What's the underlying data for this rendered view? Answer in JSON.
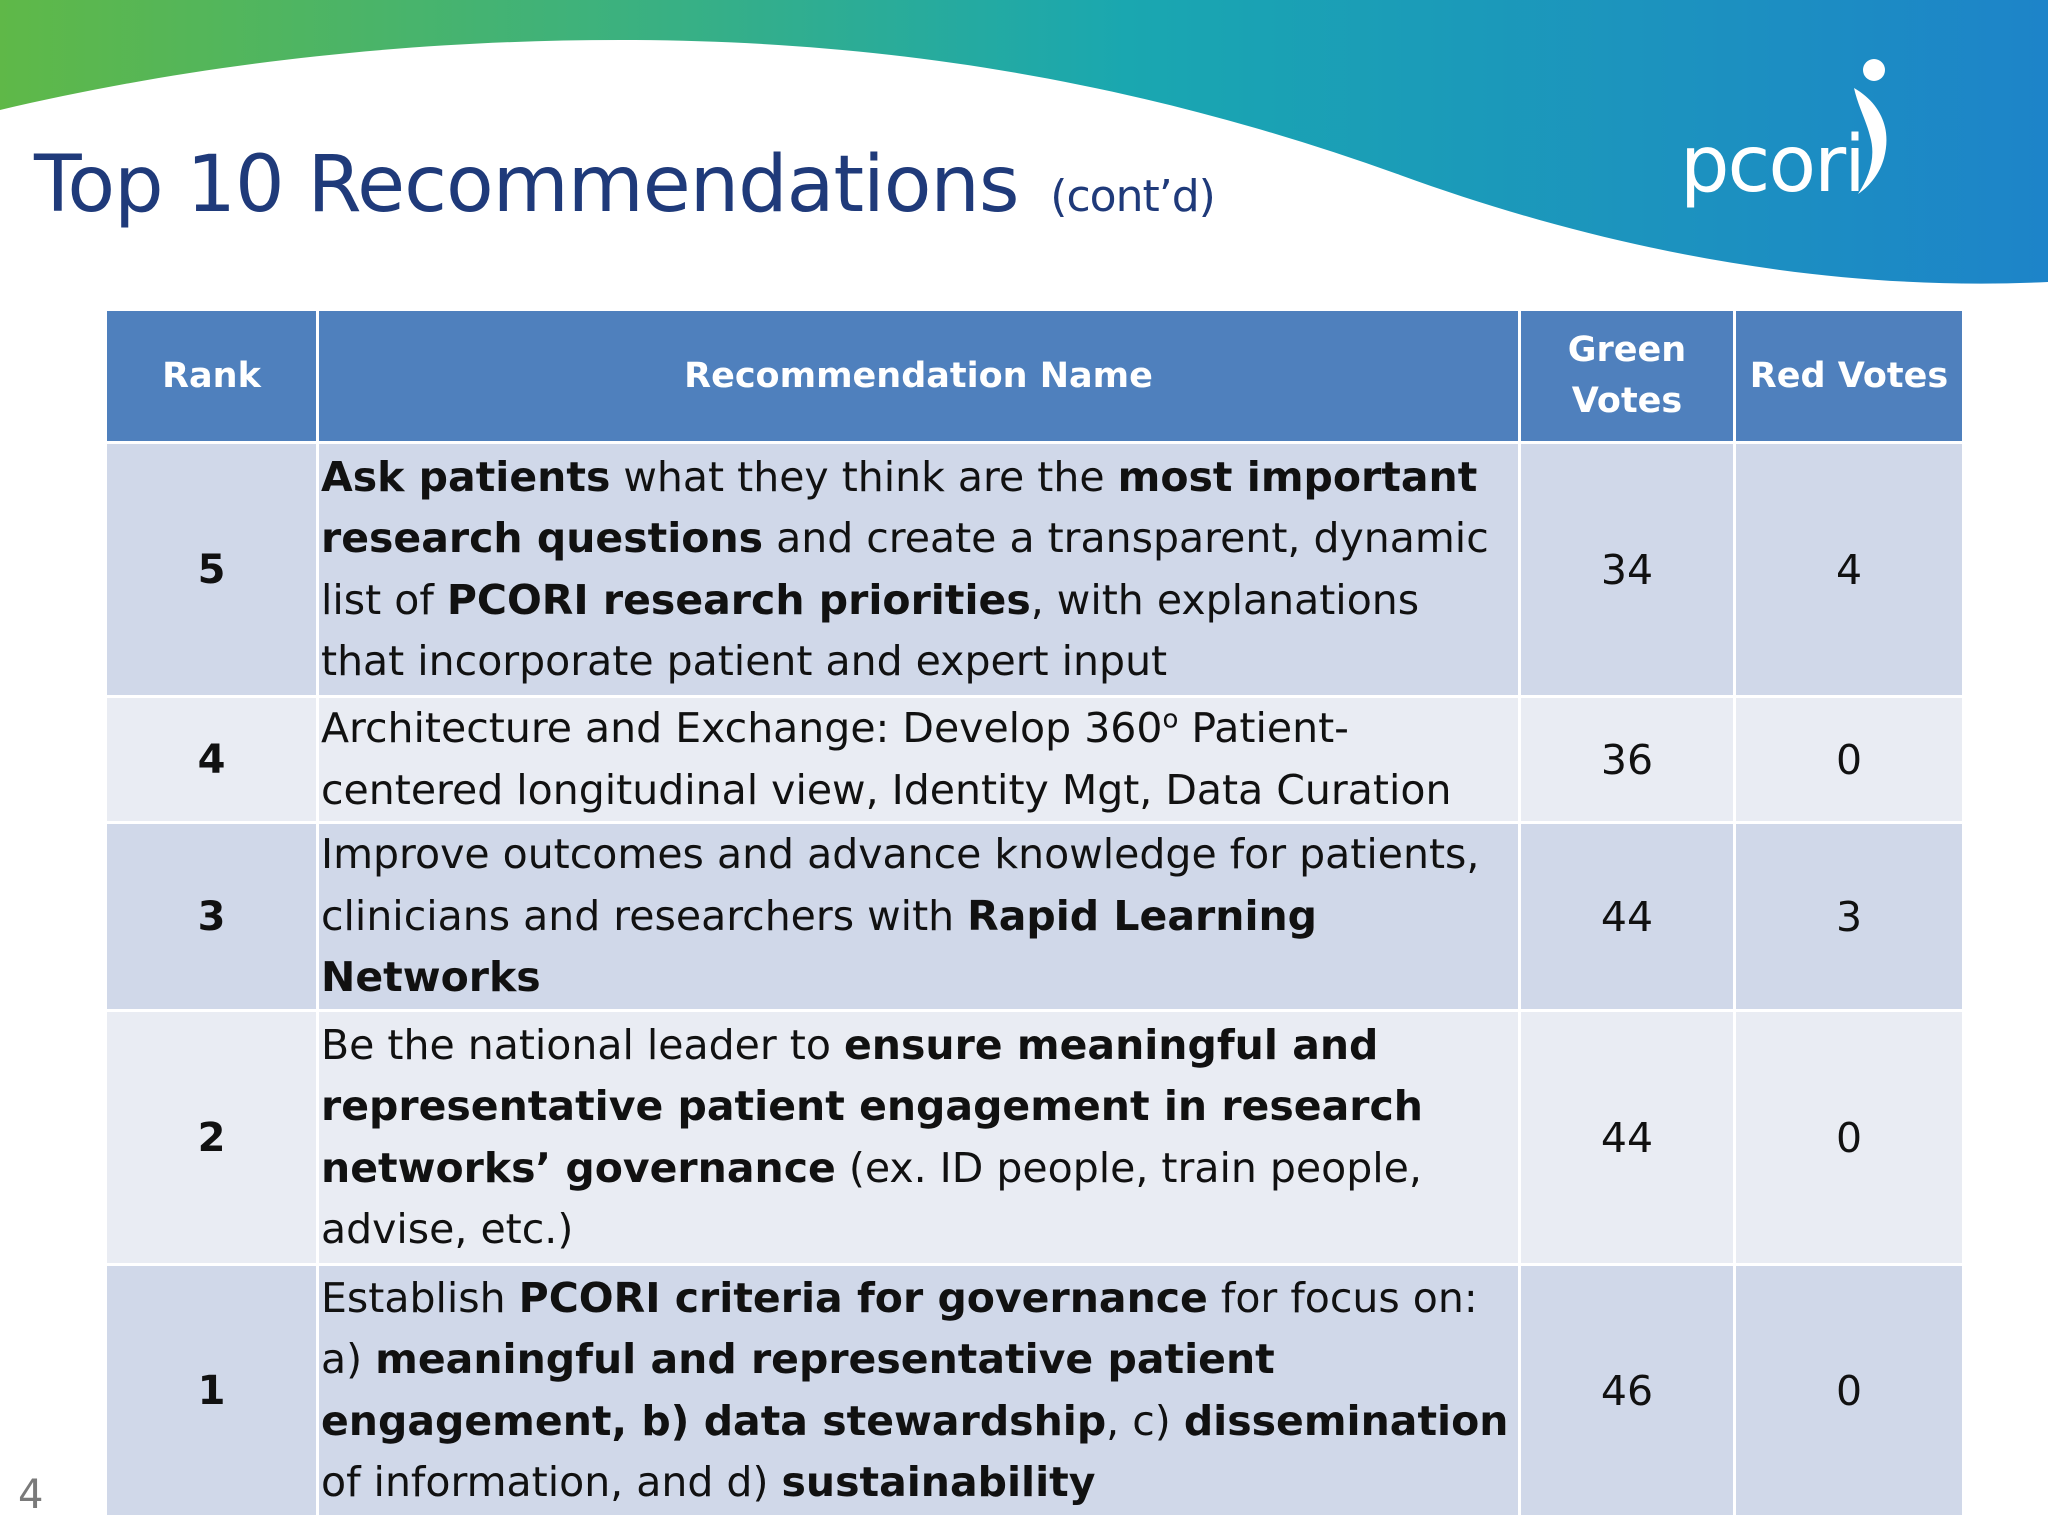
{
  "slide": {
    "title": "Top 10 Recommendations",
    "title_suffix": "(cont’d)",
    "logo_text": "pcori",
    "page_number": "4"
  },
  "colors": {
    "title": "#1f3a7a",
    "header_bg": "#4f80bd",
    "row_odd": "#d0d8e9",
    "row_even": "#e9ecf3",
    "banner_green": "#5fb848",
    "banner_teal": "#1aa7b0",
    "banner_blue": "#1d84c9"
  },
  "table": {
    "headers": {
      "rank": "Rank",
      "name": "Recommendation Name",
      "green_line1": "Green",
      "green_line2": "Votes",
      "red": "Red Votes"
    },
    "rows": [
      {
        "rank": "5",
        "segments": [
          {
            "text": "Ask patients",
            "bold": true
          },
          {
            "text": " what they think are the ",
            "bold": false
          },
          {
            "text": "most important research questions",
            "bold": true
          },
          {
            "text": " and create a transparent, dynamic list of ",
            "bold": false
          },
          {
            "text": "PCORI research priorities",
            "bold": true
          },
          {
            "text": ", with explanations that incorporate patient and expert input",
            "bold": false
          }
        ],
        "green": "34",
        "red": "4"
      },
      {
        "rank": "4",
        "segments": [
          {
            "text": "Architecture and Exchange: Develop 360",
            "bold": false
          },
          {
            "text": "o",
            "bold": false,
            "sup": true
          },
          {
            "text": " Patient-centered longitudinal view,  Identity Mgt, Data Curation",
            "bold": false
          }
        ],
        "green": "36",
        "red": "0"
      },
      {
        "rank": "3",
        "segments": [
          {
            "text": "Improve outcomes and advance knowledge for patients, clinicians and researchers with ",
            "bold": false
          },
          {
            "text": "Rapid Learning Networks",
            "bold": true
          }
        ],
        "green": "44",
        "red": "3"
      },
      {
        "rank": "2",
        "segments": [
          {
            "text": "Be the national leader to ",
            "bold": false
          },
          {
            "text": "ensure meaningful and representative patient engagement in research networks’ governance",
            "bold": true
          },
          {
            "text": " (ex. ID people, train people, advise, etc.)",
            "bold": false
          }
        ],
        "green": "44",
        "red": "0"
      },
      {
        "rank": "1",
        "segments": [
          {
            "text": "Establish ",
            "bold": false
          },
          {
            "text": "PCORI criteria for governance",
            "bold": true
          },
          {
            "text": " for focus on: a) ",
            "bold": false
          },
          {
            "text": "meaningful and representative patient engagement, b) data stewardship",
            "bold": true
          },
          {
            "text": ", c) ",
            "bold": false
          },
          {
            "text": "dissemination",
            "bold": true
          },
          {
            "text": " of information, and d) ",
            "bold": false
          },
          {
            "text": "sustainability",
            "bold": true
          }
        ],
        "green": "46",
        "red": "0"
      }
    ]
  }
}
